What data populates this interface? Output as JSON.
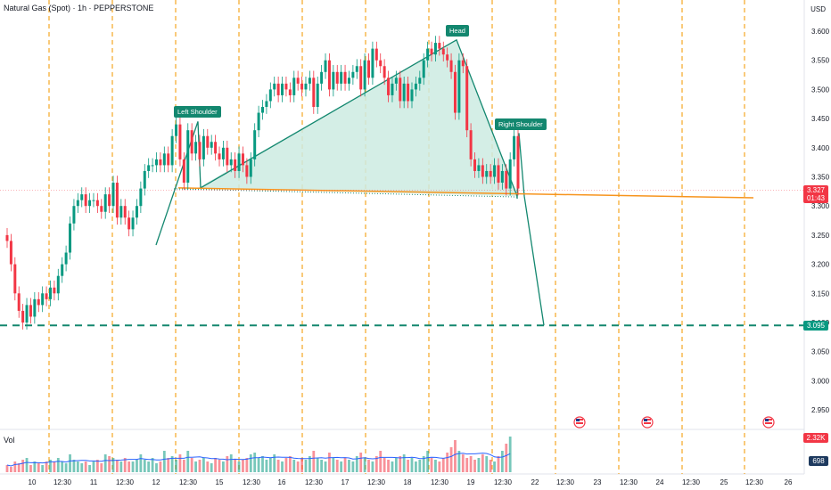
{
  "header": {
    "title": "Natural Gas (Spot) · 1h · PEPPERSTONE",
    "currency": "USD"
  },
  "volume": {
    "label": "Vol",
    "max_tag": "2.32K",
    "cur_tag": "698"
  },
  "price_tags": {
    "current_price": "3.327",
    "countdown": "01:43",
    "target": "3.095"
  },
  "pattern_labels": {
    "left": "Left Shoulder",
    "head": "Head",
    "right": "Right Shoulder"
  },
  "colors": {
    "up": "#089981",
    "down": "#f23645",
    "pattern_fill": "#cdebe2",
    "pattern_line": "#13876f",
    "neckline": "#f7941d",
    "session_line": "#f5a623",
    "target_line": "#13876f"
  },
  "chart_data": {
    "type": "candlestick",
    "title": "Natural Gas (Spot) · 1h · PEPPERSTONE",
    "y_axis": {
      "label": "USD",
      "ylim": [
        2.925,
        3.645
      ],
      "ticks": [
        2.95,
        3.0,
        3.05,
        3.1,
        3.15,
        3.2,
        3.25,
        3.3,
        3.35,
        3.4,
        3.45,
        3.5,
        3.55,
        3.6
      ]
    },
    "x_axis": {
      "tick_labels": [
        "10",
        "12:30",
        "11",
        "12:30",
        "12",
        "12:30",
        "15",
        "12:30",
        "16",
        "12:30",
        "17",
        "12:30",
        "18",
        "12:30",
        "19",
        "12:30",
        "22",
        "12:30",
        "23",
        "12:30",
        "24",
        "12:30",
        "25",
        "12:30",
        "26"
      ]
    },
    "candles_close": [
      3.24,
      3.2,
      3.15,
      3.12,
      3.1,
      3.13,
      3.11,
      3.14,
      3.13,
      3.15,
      3.14,
      3.16,
      3.15,
      3.18,
      3.2,
      3.22,
      3.27,
      3.3,
      3.31,
      3.32,
      3.3,
      3.31,
      3.31,
      3.3,
      3.29,
      3.32,
      3.3,
      3.34,
      3.28,
      3.3,
      3.28,
      3.26,
      3.28,
      3.3,
      3.33,
      3.36,
      3.37,
      3.37,
      3.38,
      3.37,
      3.39,
      3.37,
      3.42,
      3.44,
      3.38,
      3.34,
      3.43,
      3.39,
      3.41,
      3.38,
      3.42,
      3.4,
      3.41,
      3.39,
      3.38,
      3.4,
      3.37,
      3.38,
      3.36,
      3.39,
      3.37,
      3.35,
      3.38,
      3.43,
      3.46,
      3.47,
      3.48,
      3.5,
      3.51,
      3.49,
      3.51,
      3.5,
      3.49,
      3.52,
      3.51,
      3.5,
      3.51,
      3.52,
      3.47,
      3.51,
      3.53,
      3.55,
      3.5,
      3.53,
      3.51,
      3.53,
      3.51,
      3.52,
      3.53,
      3.54,
      3.5,
      3.55,
      3.52,
      3.57,
      3.55,
      3.54,
      3.52,
      3.49,
      3.51,
      3.52,
      3.48,
      3.51,
      3.48,
      3.5,
      3.51,
      3.52,
      3.55,
      3.57,
      3.56,
      3.58,
      3.57,
      3.56,
      3.55,
      3.53,
      3.46,
      3.55,
      3.54,
      3.43,
      3.38,
      3.36,
      3.37,
      3.35,
      3.36,
      3.35,
      3.37,
      3.34,
      3.36,
      3.33,
      3.38,
      3.42,
      3.33
    ],
    "volumes_relative": [
      0.2,
      0.15,
      0.3,
      0.25,
      0.35,
      0.4,
      0.2,
      0.3,
      0.25,
      0.2,
      0.3,
      0.35,
      0.3,
      0.4,
      0.3,
      0.25,
      0.5,
      0.35,
      0.3,
      0.25,
      0.3,
      0.2,
      0.3,
      0.35,
      0.25,
      0.5,
      0.45,
      0.4,
      0.35,
      0.3,
      0.4,
      0.3,
      0.3,
      0.35,
      0.5,
      0.35,
      0.3,
      0.4,
      0.25,
      0.3,
      0.6,
      0.4,
      0.45,
      0.35,
      0.5,
      0.35,
      0.6,
      0.4,
      0.3,
      0.35,
      0.4,
      0.3,
      0.25,
      0.4,
      0.35,
      0.3,
      0.45,
      0.5,
      0.35,
      0.3,
      0.35,
      0.4,
      0.5,
      0.55,
      0.4,
      0.45,
      0.35,
      0.4,
      0.5,
      0.35,
      0.3,
      0.4,
      0.45,
      0.35,
      0.3,
      0.4,
      0.35,
      0.45,
      0.6,
      0.4,
      0.35,
      0.3,
      0.55,
      0.4,
      0.35,
      0.3,
      0.4,
      0.35,
      0.3,
      0.45,
      0.55,
      0.4,
      0.35,
      0.3,
      0.45,
      0.6,
      0.4,
      0.35,
      0.3,
      0.4,
      0.45,
      0.5,
      0.35,
      0.4,
      0.3,
      0.35,
      0.45,
      0.6,
      0.4,
      0.35,
      0.3,
      0.4,
      0.55,
      0.7,
      0.9,
      0.6,
      0.5,
      0.4,
      0.45,
      0.35,
      0.4,
      0.5,
      0.45,
      0.35,
      0.3,
      0.45,
      0.6,
      0.8,
      1.0
    ],
    "pattern": {
      "left_shoulder": 3.445,
      "head": 3.585,
      "right_shoulder": 3.425,
      "neckline_start": 3.331,
      "neckline_end": 3.317,
      "projection_target": 3.095
    },
    "current_price": 3.327,
    "target_price": 3.095
  }
}
